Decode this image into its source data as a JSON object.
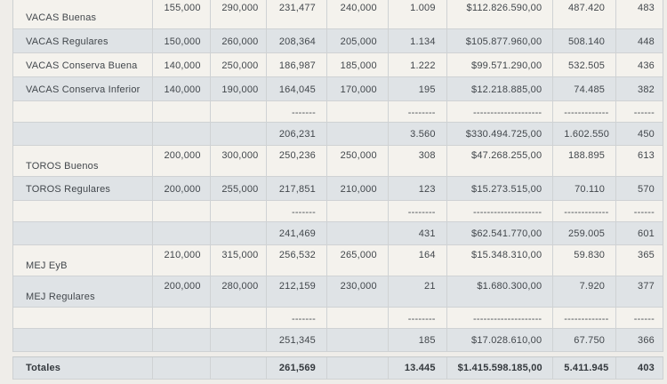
{
  "colors": {
    "page_background": "#efede9",
    "row_light": "#f4f2ed",
    "row_shaded": "#dfe3e6",
    "border": "#cfd2d4",
    "text": "#42474c"
  },
  "table": {
    "rows": [
      {
        "name": "row-vacas-buenas",
        "type": "data-first",
        "shade": "light",
        "cells": [
          "VACAS Buenas",
          "155,000",
          "290,000",
          "231,477",
          "240,000",
          "1.009",
          "$112.826.590,00",
          "487.420",
          "483"
        ]
      },
      {
        "name": "row-vacas-regulares",
        "type": "data",
        "shade": "shaded",
        "cells": [
          "VACAS Regulares",
          "150,000",
          "260,000",
          "208,364",
          "205,000",
          "1.134",
          "$105.877.960,00",
          "508.140",
          "448"
        ]
      },
      {
        "name": "row-vacas-conserva-buena",
        "type": "data",
        "shade": "light",
        "cells": [
          "VACAS Conserva Buena",
          "140,000",
          "250,000",
          "186,987",
          "185,000",
          "1.222",
          "$99.571.290,00",
          "532.505",
          "436"
        ]
      },
      {
        "name": "row-vacas-conserva-inferior",
        "type": "data",
        "shade": "shaded",
        "cells": [
          "VACAS Conserva Inferior",
          "140,000",
          "190,000",
          "164,045",
          "170,000",
          "195",
          "$12.218.885,00",
          "74.485",
          "382"
        ]
      },
      {
        "name": "row-dashes-vacas",
        "type": "dashes",
        "shade": "light",
        "cells": [
          "",
          "",
          "",
          "-------",
          "",
          "--------",
          "--------------------",
          "-------------",
          "------"
        ]
      },
      {
        "name": "row-subtotal-vacas",
        "type": "subtotal",
        "shade": "shaded",
        "cells": [
          "",
          "",
          "",
          "206,231",
          "",
          "3.560",
          "$330.494.725,00",
          "1.602.550",
          "450"
        ]
      },
      {
        "name": "row-toros-buenos",
        "type": "data-tall",
        "shade": "light",
        "cells": [
          "TOROS Buenos",
          "200,000",
          "300,000",
          "250,236",
          "250,000",
          "308",
          "$47.268.255,00",
          "188.895",
          "613"
        ]
      },
      {
        "name": "row-toros-regulares",
        "type": "data",
        "shade": "shaded",
        "cells": [
          "TOROS Regulares",
          "200,000",
          "255,000",
          "217,851",
          "210,000",
          "123",
          "$15.273.515,00",
          "70.110",
          "570"
        ]
      },
      {
        "name": "row-dashes-toros",
        "type": "dashes",
        "shade": "light",
        "cells": [
          "",
          "",
          "",
          "-------",
          "",
          "--------",
          "--------------------",
          "-------------",
          "------"
        ]
      },
      {
        "name": "row-subtotal-toros",
        "type": "subtotal",
        "shade": "shaded",
        "cells": [
          "",
          "",
          "",
          "241,469",
          "",
          "431",
          "$62.541.770,00",
          "259.005",
          "601"
        ]
      },
      {
        "name": "row-mej-eyb",
        "type": "data-tall",
        "shade": "light",
        "cells": [
          "MEJ EyB",
          "210,000",
          "315,000",
          "256,532",
          "265,000",
          "164",
          "$15.348.310,00",
          "59.830",
          "365"
        ]
      },
      {
        "name": "row-mej-regulares",
        "type": "data-tall",
        "shade": "shaded",
        "cells": [
          "MEJ Regulares",
          "200,000",
          "280,000",
          "212,159",
          "230,000",
          "21",
          "$1.680.300,00",
          "7.920",
          "377"
        ]
      },
      {
        "name": "row-dashes-mej",
        "type": "dashes",
        "shade": "light",
        "cells": [
          "",
          "",
          "",
          "-------",
          "",
          "--------",
          "--------------------",
          "-------------",
          "------"
        ]
      },
      {
        "name": "row-subtotal-mej",
        "type": "subtotal",
        "shade": "shaded",
        "cells": [
          "",
          "",
          "",
          "251,345",
          "",
          "185",
          "$17.028.610,00",
          "67.750",
          "366"
        ]
      }
    ],
    "totals_row": {
      "name": "row-totales",
      "type": "totals",
      "shade": "shaded",
      "cells": [
        "Totales",
        "",
        "",
        "261,569",
        "",
        "13.445",
        "$1.415.598.185,00",
        "5.411.945",
        "403"
      ]
    }
  }
}
